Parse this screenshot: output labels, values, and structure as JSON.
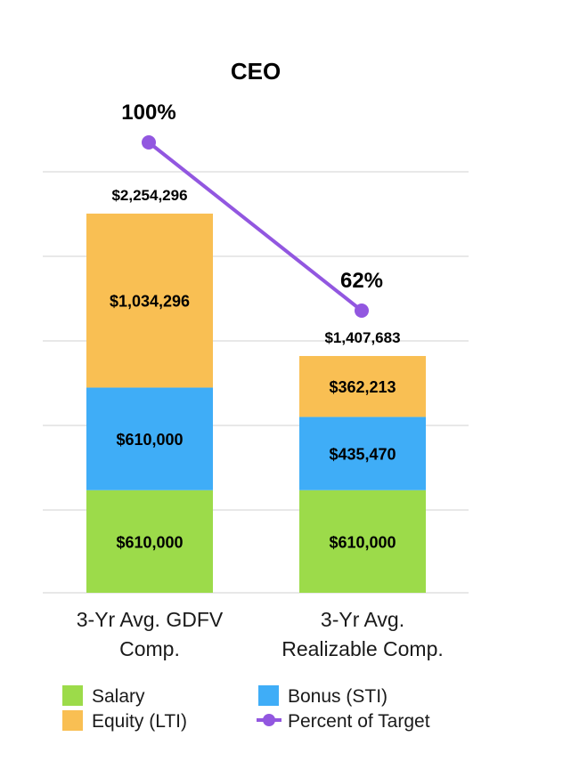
{
  "chart_data": {
    "type": "bar",
    "stacked": true,
    "title": "CEO",
    "categories": [
      [
        "3-Yr Avg. GDFV",
        "Comp."
      ],
      [
        "3-Yr Avg.",
        "Realizable Comp."
      ]
    ],
    "series": [
      {
        "name": "Salary",
        "color": "#9cdb4a",
        "values": [
          610000,
          610000
        ],
        "labels": [
          "$610,000",
          "$610,000"
        ]
      },
      {
        "name": "Bonus (STI)",
        "color": "#3fadf7",
        "values": [
          610000,
          435470
        ],
        "labels": [
          "$610,000",
          "$435,470"
        ]
      },
      {
        "name": "Equity (LTI)",
        "color": "#f9bf53",
        "values": [
          1034296,
          362213
        ],
        "labels": [
          "$1,034,296",
          "$362,213"
        ]
      }
    ],
    "totals": [
      {
        "value": 2254296,
        "label": "$2,254,296"
      },
      {
        "value": 1407683,
        "label": "$1,407,683"
      }
    ],
    "line_series": {
      "name": "Percent of Target",
      "color": "#9257e0",
      "values": [
        100,
        62
      ],
      "labels": [
        "100%",
        "62%"
      ]
    },
    "ylim": [
      0,
      2500000
    ],
    "gridlines": true,
    "legend_position": "bottom",
    "legend": [
      {
        "name": "Salary",
        "kind": "box",
        "color": "#9cdb4a"
      },
      {
        "name": "Bonus (STI)",
        "kind": "box",
        "color": "#3fadf7"
      },
      {
        "name": "Equity (LTI)",
        "kind": "box",
        "color": "#f9bf53"
      },
      {
        "name": "Percent of Target",
        "kind": "line",
        "color": "#9257e0"
      }
    ],
    "gridline_color": "#e0e0e0"
  }
}
